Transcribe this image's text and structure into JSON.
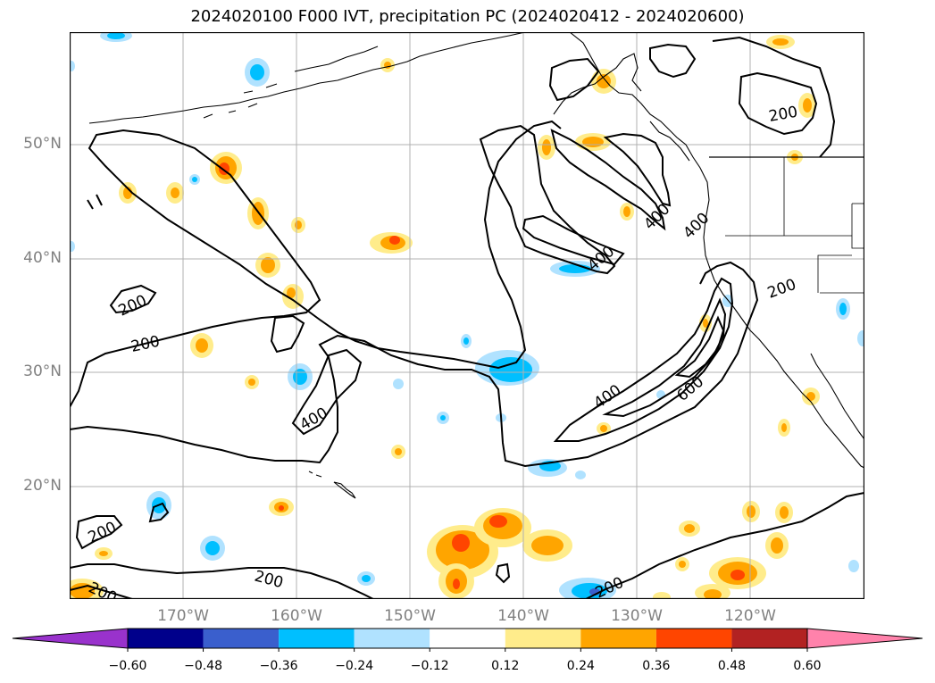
{
  "title": "2024020100 F000 IVT, precipitation PC (2024020412 - 2024020600)",
  "lat_labels": [
    "50°N",
    "40°N",
    "30°N",
    "20°N"
  ],
  "lon_labels": [
    "170°W",
    "160°W",
    "150°W",
    "140°W",
    "130°W",
    "120°W"
  ],
  "contour_labels": [
    "200",
    "200",
    "200",
    "200",
    "200",
    "200",
    "200",
    "400",
    "400",
    "400",
    "400",
    "400",
    "600"
  ],
  "colorbar": {
    "tick_labels": [
      "−0.60",
      "−0.48",
      "−0.36",
      "−0.24",
      "−0.12",
      "0.12",
      "0.24",
      "0.36",
      "0.48",
      "0.60"
    ],
    "colors": [
      "#9932cc",
      "#00008b",
      "#3a5fcd",
      "#00bfff",
      "#b0e2ff",
      "#ffffff",
      "#ffec8b",
      "#ffa500",
      "#ff4500",
      "#b22222",
      "#ff82ab"
    ]
  },
  "colors": {
    "contour": "#000000",
    "grid": "#b0b0b0",
    "label": "#808080"
  }
}
